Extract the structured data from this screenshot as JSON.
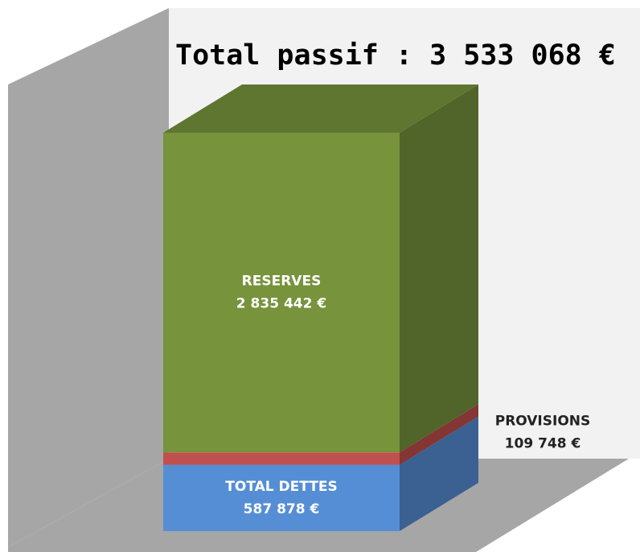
{
  "chart_data": {
    "type": "bar",
    "stacked": true,
    "title": "Total passif : 3 533 068 €",
    "categories": [
      null
    ],
    "series": [
      {
        "name": "TOTAL DETTES",
        "color": "#558ed5",
        "values": [
          587878
        ],
        "value_labels": [
          "587 878 €"
        ]
      },
      {
        "name": "PROVISIONS",
        "color": "#c0504d",
        "values": [
          109748
        ],
        "value_labels": [
          "109 748 €"
        ]
      },
      {
        "name": "RESERVES",
        "color": "#77933c",
        "values": [
          2835442
        ],
        "value_labels": [
          "2 835 442 €"
        ]
      }
    ]
  }
}
